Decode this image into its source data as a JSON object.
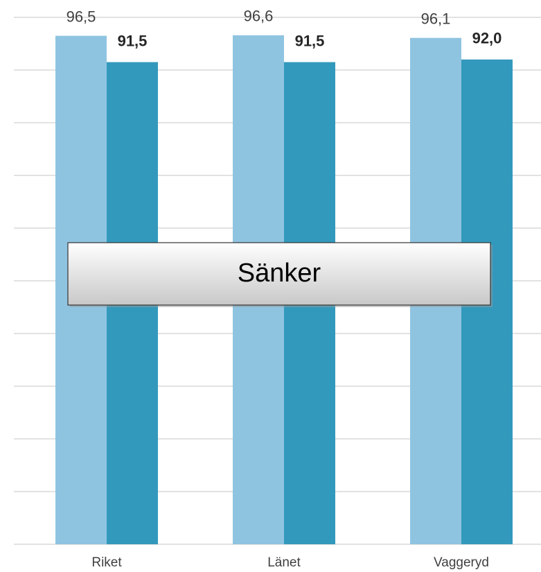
{
  "chart_data": {
    "type": "bar",
    "categories": [
      "Riket",
      "Länet",
      "Vaggeryd"
    ],
    "series": [
      {
        "color": "#8fc4e1",
        "values": [
          96.5,
          96.6,
          96.1
        ],
        "value_labels": [
          "96,5",
          "96,6",
          "96,1"
        ]
      },
      {
        "color": "#3399bc",
        "values": [
          91.5,
          91.5,
          92.0
        ],
        "value_labels": [
          "91,5",
          "91,5",
          "92,0"
        ]
      }
    ],
    "ylim": [
      0,
      100
    ],
    "yticks": [
      0,
      10,
      20,
      30,
      40,
      50,
      60,
      70,
      80,
      90,
      100
    ],
    "grid": true,
    "annotation": "Sänker"
  }
}
